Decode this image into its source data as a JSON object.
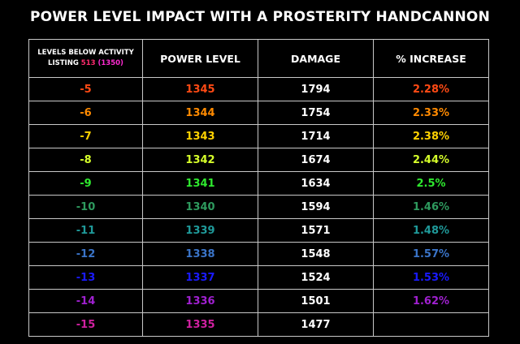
{
  "title": "POWER LEVEL IMPACT WITH A PROSTERITY HANDCANNON",
  "header": {
    "levels_line1": "LEVELS BELOW ACTIVITY",
    "levels_line2_prefix": "LISTING",
    "levels_value": "513",
    "levels_paren": "(1350)",
    "power_level": "POWER LEVEL",
    "damage": "DAMAGE",
    "increase": "% INCREASE"
  },
  "colors": {
    "value_513": "#ff2b6e",
    "value_1350": "#ff2bd2"
  },
  "rows": [
    {
      "level": "-5",
      "power": "1345",
      "damage": "1794",
      "increase": "2.28%",
      "color": "#ff4a14"
    },
    {
      "level": "-6",
      "power": "1344",
      "damage": "1754",
      "increase": "2.33%",
      "color": "#ff8a00"
    },
    {
      "level": "-7",
      "power": "1343",
      "damage": "1714",
      "increase": "2.38%",
      "color": "#ffd200"
    },
    {
      "level": "-8",
      "power": "1342",
      "damage": "1674",
      "increase": "2.44%",
      "color": "#d6ff2a"
    },
    {
      "level": "-9",
      "power": "1341",
      "damage": "1634",
      "increase": "2.5%",
      "color": "#2ee82e"
    },
    {
      "level": "-10",
      "power": "1340",
      "damage": "1594",
      "increase": "1.46%",
      "color": "#2e9a5e"
    },
    {
      "level": "-11",
      "power": "1339",
      "damage": "1571",
      "increase": "1.48%",
      "color": "#1f9a9a"
    },
    {
      "level": "-12",
      "power": "1338",
      "damage": "1548",
      "increase": "1.57%",
      "color": "#3a74c8"
    },
    {
      "level": "-13",
      "power": "1337",
      "damage": "1524",
      "increase": "1.53%",
      "color": "#1a1aff"
    },
    {
      "level": "-14",
      "power": "1336",
      "damage": "1501",
      "increase": "1.62%",
      "color": "#a020d0"
    },
    {
      "level": "-15",
      "power": "1335",
      "damage": "1477",
      "increase": "",
      "color": "#d020a0"
    }
  ]
}
